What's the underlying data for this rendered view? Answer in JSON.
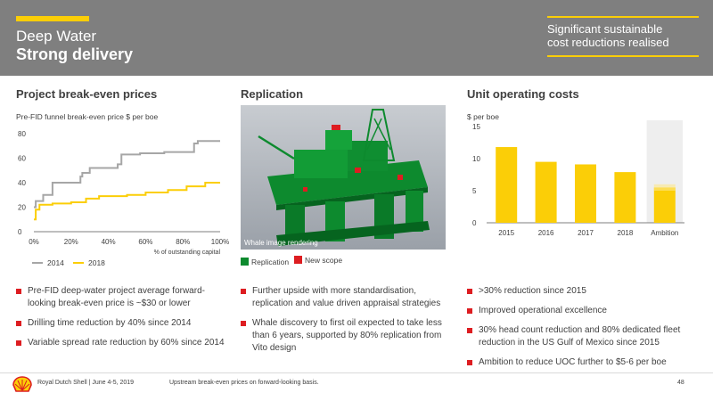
{
  "header": {
    "title_line1": "Deep Water",
    "title_line2": "Strong delivery",
    "callout_line1": "Significant sustainable",
    "callout_line2": "cost reductions realised"
  },
  "left": {
    "title": "Project break-even prices",
    "subtitle": "Pre-FID funnel break-even price $ per boe",
    "xaxis_note": "% of outstanding capital",
    "bullets": [
      "Pre-FID deep-water project average forward-looking break-even price is ~$30 or lower",
      "Drilling time reduction by 40% since 2014",
      "Variable spread rate reduction by 60% since 2014"
    ]
  },
  "middle": {
    "title": "Replication",
    "image_caption": "Whale image rendering",
    "legend": [
      "Replication",
      "New scope"
    ],
    "bullets": [
      "Further upside with more standardisation, replication and value driven appraisal strategies",
      "Whale discovery to first oil expected to take less than 6 years, supported by 80% replication from Vito design"
    ]
  },
  "right": {
    "title": "Unit operating costs",
    "subtitle": "$ per boe",
    "bullets": [
      ">30% reduction since 2015",
      "Improved operational excellence",
      "30% head count reduction and 80% dedicated fleet reduction in the US Gulf of Mexico since 2015",
      "Ambition to reduce UOC further to $5-6 per boe"
    ]
  },
  "footer": {
    "company": "Royal Dutch Shell | June 4-5, 2019",
    "note": "Upstream break-even prices on forward-looking basis.",
    "page": "48"
  },
  "colors": {
    "header_gray": "#7f7f7f",
    "accent_yellow": "#fbce07",
    "bullet_red": "#dd1d21",
    "replication_green": "#0d8a2e",
    "new_scope_red": "#dd1d21",
    "series_2014": "#a6a6a6",
    "series_2018": "#fbce07",
    "ambition_band": "#eeeeee"
  },
  "chart_data": [
    {
      "type": "line",
      "xlabel": "% of outstanding capital",
      "ylabel": "",
      "xlim": [
        0,
        100
      ],
      "ylim": [
        0,
        80
      ],
      "xticks": [
        "0%",
        "20%",
        "40%",
        "60%",
        "80%",
        "100%"
      ],
      "yticks": [
        "0",
        "20",
        "40",
        "60",
        "80"
      ],
      "legend_position": "bottom",
      "series": [
        {
          "name": "2014",
          "color": "#a6a6a6",
          "x": [
            0,
            1,
            1,
            5,
            5,
            10,
            10,
            25,
            25,
            26,
            26,
            30,
            30,
            45,
            45,
            47,
            47,
            57,
            57,
            63,
            63,
            70,
            70,
            86,
            86,
            88,
            88,
            100
          ],
          "y": [
            20,
            20,
            25,
            25,
            30,
            30,
            40,
            40,
            45,
            45,
            48,
            48,
            52,
            52,
            55,
            55,
            63,
            63,
            64,
            64,
            64,
            64,
            65,
            65,
            72,
            72,
            74,
            74
          ]
        },
        {
          "name": "2018",
          "color": "#fbce07",
          "x": [
            0,
            1,
            1,
            3,
            3,
            10,
            10,
            20,
            20,
            28,
            28,
            35,
            35,
            50,
            50,
            60,
            60,
            72,
            72,
            82,
            82,
            92,
            92,
            100
          ],
          "y": [
            10,
            10,
            18,
            18,
            22,
            22,
            23,
            23,
            24,
            24,
            27,
            27,
            29,
            29,
            30,
            30,
            32,
            32,
            34,
            34,
            37,
            37,
            40,
            40
          ]
        }
      ]
    },
    {
      "type": "bar",
      "title": "Unit operating costs",
      "ylabel": "$ per boe",
      "ylim": [
        0,
        15
      ],
      "yticks": [
        "0",
        "5",
        "10",
        "15"
      ],
      "categories": [
        "2015",
        "2016",
        "2017",
        "2018",
        "Ambition"
      ],
      "values": [
        11.8,
        9.5,
        9.1,
        7.9,
        5.5
      ],
      "ambition_range": [
        5,
        6
      ],
      "grid": false
    }
  ]
}
